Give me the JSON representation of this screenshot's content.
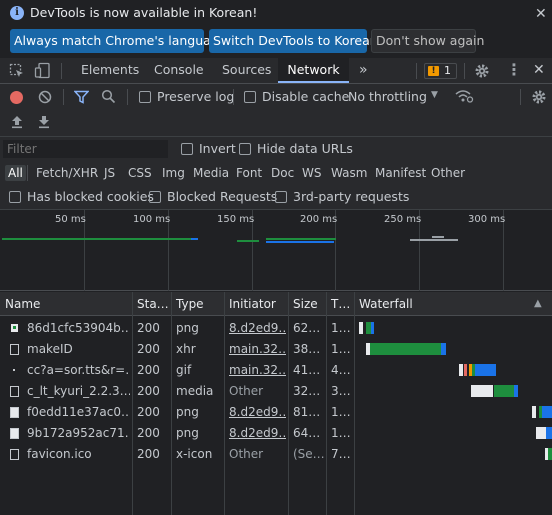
{
  "infobar": {
    "message": "DevTools is now available in Korean!",
    "btn_match": "Always match Chrome's language",
    "btn_switch": "Switch DevTools to Korean",
    "btn_dismiss": "Don't show again"
  },
  "tabs": {
    "elements": "Elements",
    "console": "Console",
    "sources": "Sources",
    "network": "Network",
    "more": "»",
    "issues_count": "1"
  },
  "network_toolbar": {
    "preserve_log": "Preserve log",
    "disable_cache": "Disable cache",
    "throttling": "No throttling"
  },
  "filter": {
    "placeholder": "Filter",
    "invert": "Invert",
    "hide_data_urls": "Hide data URLs",
    "types": [
      "All",
      "Fetch/XHR",
      "JS",
      "CSS",
      "Img",
      "Media",
      "Font",
      "Doc",
      "WS",
      "Wasm",
      "Manifest",
      "Other"
    ],
    "has_blocked_cookies": "Has blocked cookies",
    "blocked_requests": "Blocked Requests",
    "third_party": "3rd-party requests"
  },
  "overview": {
    "ticks": [
      "50 ms",
      "100 ms",
      "150 ms",
      "200 ms",
      "250 ms",
      "300 ms"
    ]
  },
  "table": {
    "headers": {
      "name": "Name",
      "status": "Sta…",
      "type": "Type",
      "initiator": "Initiator",
      "size": "Size",
      "time": "T…",
      "waterfall": "Waterfall",
      "sort_icon": "▲"
    },
    "rows": [
      {
        "name": "86d1cfc53904b…",
        "status": "200",
        "type": "png",
        "initiator": "8.d2ed9…",
        "size": "62…",
        "time": "1…"
      },
      {
        "name": "makeID",
        "status": "200",
        "type": "xhr",
        "initiator": "main.32…",
        "size": "38…",
        "time": "1…"
      },
      {
        "name": "cc?a=sor.tts&r=…",
        "status": "200",
        "type": "gif",
        "initiator": "main.32…",
        "size": "41…",
        "time": "4…"
      },
      {
        "name": "c_lt_kyuri_2.2.3…",
        "status": "200",
        "type": "media",
        "initiator": "Other",
        "size": "32…",
        "time": "3…"
      },
      {
        "name": "f0edd11e37ac0…",
        "status": "200",
        "type": "png",
        "initiator": "8.d2ed9…",
        "size": "81…",
        "time": "1…"
      },
      {
        "name": "9b172a952ac71…",
        "status": "200",
        "type": "png",
        "initiator": "8.d2ed9…",
        "size": "64…",
        "time": "1…"
      },
      {
        "name": "favicon.ico",
        "status": "200",
        "type": "x-icon",
        "initiator": "Other",
        "size": "(Se…",
        "time": "7…"
      }
    ]
  },
  "colors": {
    "accent": "#8ab4f8",
    "waiting": "#1e8e3e",
    "download": "#1a73e8",
    "issue_badge": "#f29900"
  }
}
